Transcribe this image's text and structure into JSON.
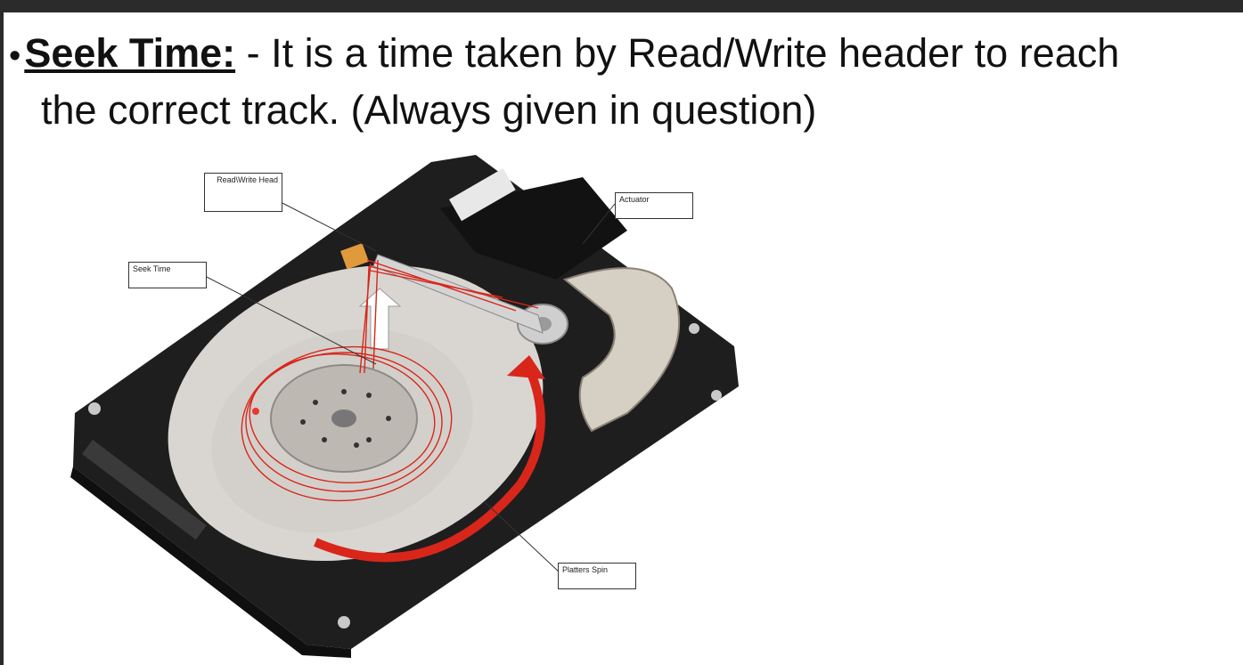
{
  "slide": {
    "bullet_symbol": "•",
    "term": "Seek Time:",
    "definition_line1": " - It is a time taken by Read/Write header to reach",
    "definition_line2": "the correct track. (Always given in question)"
  },
  "figure": {
    "callouts": {
      "read_write_head": "Read\\Write Head",
      "actuator": "Actuator",
      "seek_time": "Seek Time",
      "platters_spin": "Platters Spin"
    },
    "colors": {
      "annotation_red": "#d8261b",
      "chassis": "#1e1e1e",
      "platter": "#d9d6d2"
    }
  }
}
